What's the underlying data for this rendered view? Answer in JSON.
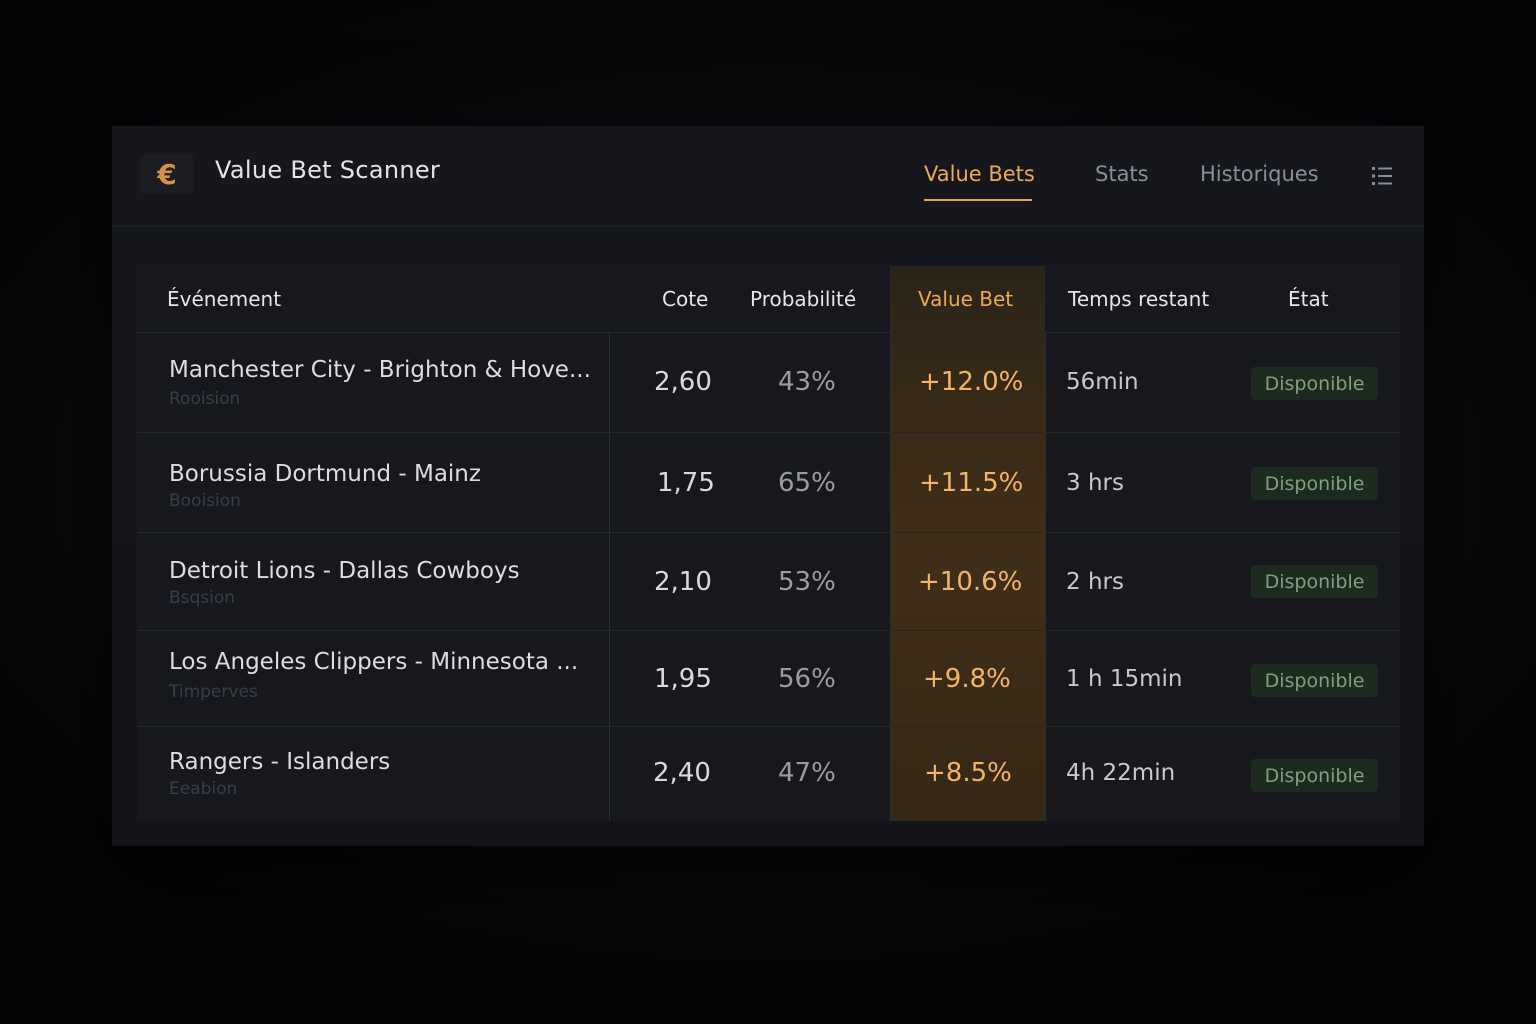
{
  "app": {
    "logo_symbol": "€",
    "title": "Value Bet Scanner"
  },
  "tabs": [
    {
      "label": "Value Bets",
      "active": true
    },
    {
      "label": "Stats",
      "active": false
    },
    {
      "label": "Historiques",
      "active": false
    }
  ],
  "table": {
    "headers": {
      "event": "Événement",
      "cote": "Cote",
      "probabilite": "Probabilité",
      "value_bet": "Value Bet",
      "temps": "Temps restant",
      "etat": "État"
    },
    "rows": [
      {
        "event": "Manchester City - Brighton & Hove...",
        "sub": "Rooision",
        "cote": "2,60",
        "prob": "43%",
        "value": "+12.0%",
        "time": "56min",
        "status": "Disponible"
      },
      {
        "event": "Borussia Dortmund - Mainz",
        "sub": "Booision",
        "cote": "1,75",
        "prob": "65%",
        "value": "+11.5%",
        "time": "3 hrs",
        "status": "Disponible"
      },
      {
        "event": "Detroit Lions - Dallas Cowboys",
        "sub": "Bsqsion",
        "cote": "2,10",
        "prob": "53%",
        "value": "+10.6%",
        "time": "2 hrs",
        "status": "Disponible"
      },
      {
        "event": "Los Angeles Clippers - Minnesota ...",
        "sub": "Timperves",
        "cote": "1,95",
        "prob": "56%",
        "value": "+9.8%",
        "time": "1 h 15min",
        "status": "Disponible"
      },
      {
        "event": "Rangers - Islanders",
        "sub": "Eeabion",
        "cote": "2,40",
        "prob": "47%",
        "value": "+8.5%",
        "time": "4h 22min",
        "status": "Disponible"
      }
    ]
  },
  "colors": {
    "accent": "#eda958",
    "badge_bg": "#1d2a20",
    "badge_text": "#7fa07c"
  }
}
